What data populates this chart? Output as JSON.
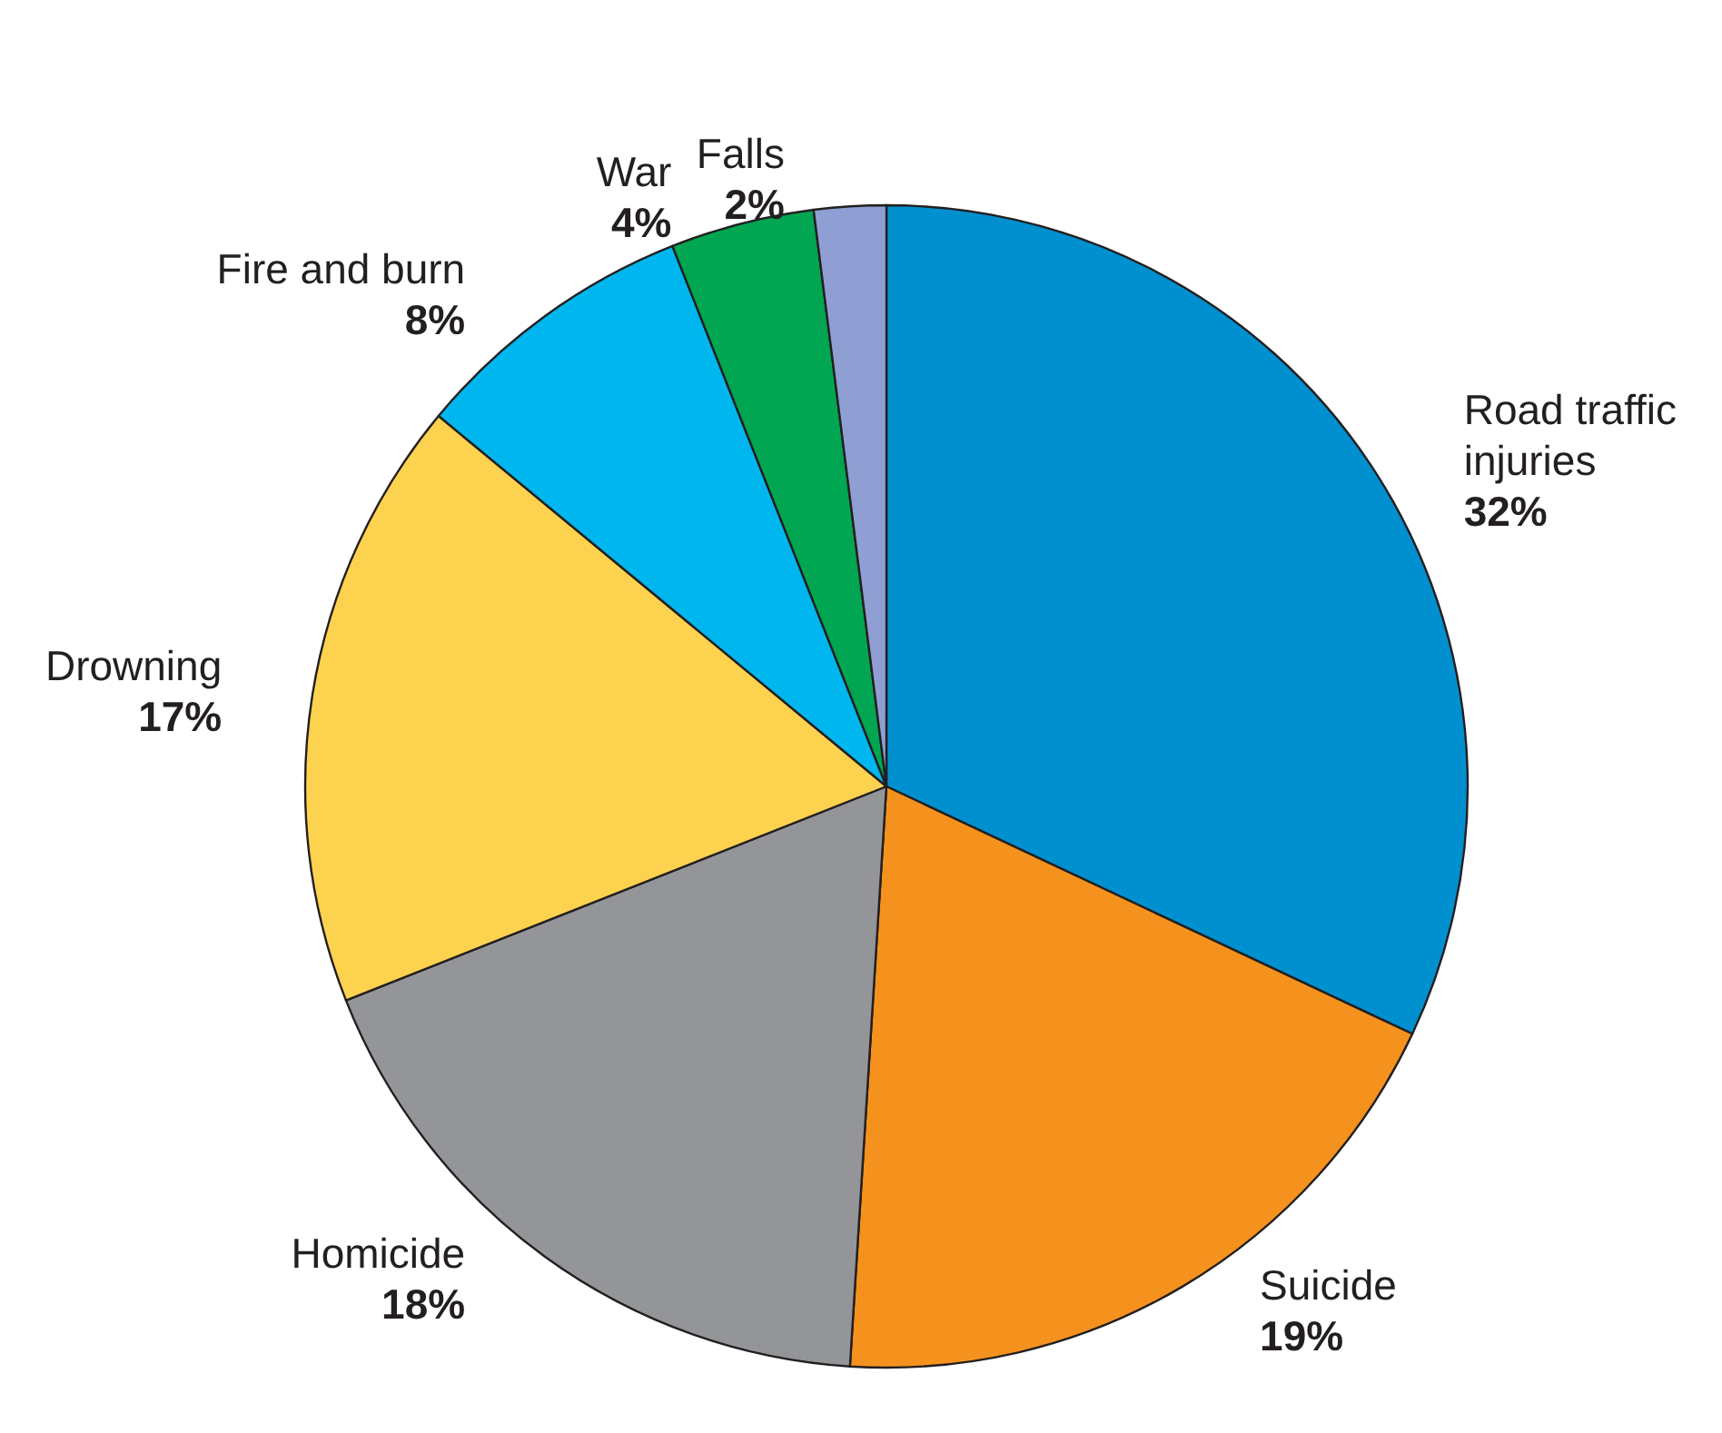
{
  "chart_data": {
    "type": "pie",
    "categories": [
      "Road traffic injuries",
      "Suicide",
      "Homicide",
      "Drowning",
      "Fire and burn",
      "War",
      "Falls"
    ],
    "values": [
      32,
      19,
      18,
      17,
      8,
      4,
      2
    ],
    "value_labels": [
      "32%",
      "19%",
      "18%",
      "17%",
      "8%",
      "4%",
      "2%"
    ],
    "colors": [
      "#0090d0",
      "#f5921e",
      "#939598",
      "#fdd24f",
      "#00b6ee",
      "#00a651",
      "#8f9fd3"
    ],
    "legend": false
  }
}
